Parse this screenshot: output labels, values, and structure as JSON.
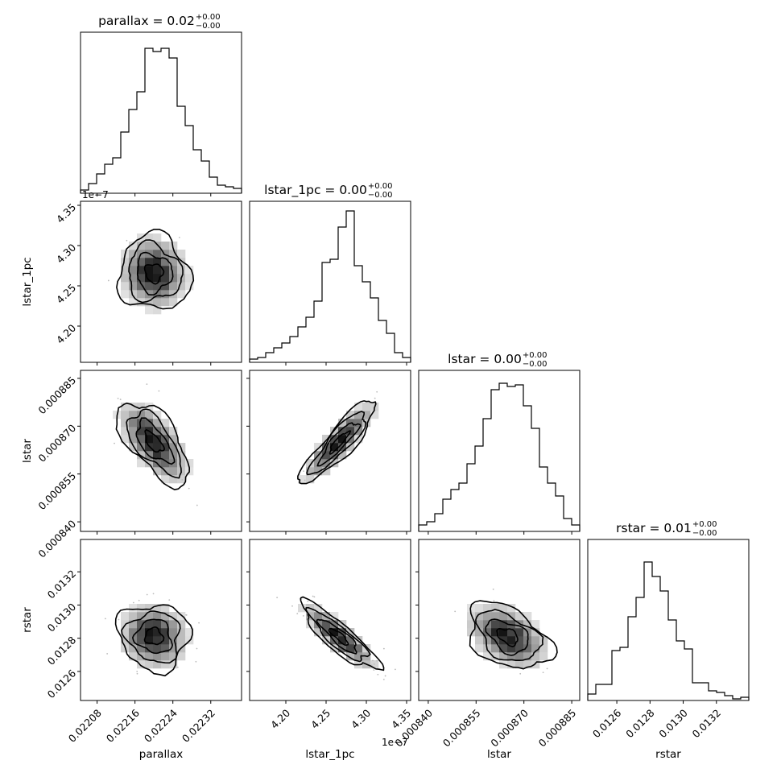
{
  "chart_data": {
    "type": "corner",
    "parameters": [
      "parallax",
      "lstar_1pc",
      "lstar",
      "rstar"
    ],
    "titles": [
      {
        "main": "parallax = 0.02",
        "sup": "+0.00",
        "sub": "−0.00"
      },
      {
        "main": "lstar_1pc = 0.00",
        "sup": "+0.00",
        "sub": "−0.00"
      },
      {
        "main": "lstar = 0.00",
        "sup": "+0.00",
        "sub": "−0.00"
      },
      {
        "main": "rstar = 0.01",
        "sup": "+0.00",
        "sub": "−0.00"
      }
    ],
    "axes": [
      {
        "name": "parallax",
        "label": "parallax",
        "range": [
          0.022045,
          0.022385
        ],
        "ticks": [
          0.02208,
          0.02216,
          0.02224,
          0.02232
        ],
        "tick_labels": [
          "0.02208",
          "0.02216",
          "0.02224",
          "0.02232"
        ],
        "offset_text": ""
      },
      {
        "name": "lstar_1pc",
        "label": "lstar_1pc",
        "range": [
          4.155,
          4.355
        ],
        "ticks": [
          4.2,
          4.25,
          4.3,
          4.35
        ],
        "tick_labels": [
          "4.20",
          "4.25",
          "4.30",
          "4.35"
        ],
        "offset_text": "1e−7"
      },
      {
        "name": "lstar",
        "label": "lstar",
        "range": [
          0.000837,
          0.0008875
        ],
        "ticks": [
          0.00084,
          0.000855,
          0.00087,
          0.000885
        ],
        "tick_labels": [
          "0.000840",
          "0.000855",
          "0.000870",
          "0.000885"
        ],
        "offset_text": ""
      },
      {
        "name": "rstar",
        "label": "rstar",
        "range": [
          0.012425,
          0.013395
        ],
        "ticks": [
          0.0126,
          0.0128,
          0.013,
          0.0132
        ],
        "tick_labels": [
          "0.0126",
          "0.0128",
          "0.0130",
          "0.0132"
        ],
        "offset_text": ""
      }
    ],
    "histograms": [
      [
        0.02,
        0.06,
        0.12,
        0.18,
        0.22,
        0.38,
        0.52,
        0.63,
        0.9,
        0.88,
        0.9,
        0.84,
        0.54,
        0.42,
        0.27,
        0.2,
        0.1,
        0.05,
        0.04,
        0.03
      ],
      [
        0.02,
        0.03,
        0.06,
        0.09,
        0.12,
        0.16,
        0.22,
        0.28,
        0.38,
        0.62,
        0.64,
        0.84,
        0.94,
        0.6,
        0.5,
        0.4,
        0.26,
        0.18,
        0.06,
        0.03
      ],
      [
        0.04,
        0.06,
        0.11,
        0.2,
        0.26,
        0.3,
        0.42,
        0.53,
        0.7,
        0.88,
        0.92,
        0.9,
        0.91,
        0.78,
        0.64,
        0.4,
        0.3,
        0.22,
        0.08,
        0.04
      ],
      [
        0.04,
        0.1,
        0.1,
        0.31,
        0.33,
        0.52,
        0.64,
        0.86,
        0.77,
        0.68,
        0.5,
        0.37,
        0.32,
        0.11,
        0.11,
        0.06,
        0.05,
        0.03,
        0.01,
        0.02
      ]
    ],
    "pairs": [
      {
        "x": "parallax",
        "y": "lstar_1pc",
        "center": [
          0.0222,
          4.266
        ],
        "sigma": [
          3.75e-05,
          0.0235
        ],
        "rho": -0.05
      },
      {
        "x": "parallax",
        "y": "lstar",
        "center": [
          0.0222,
          0.000865
        ],
        "sigma": [
          3.75e-05,
          6.5e-06
        ],
        "rho": -0.62
      },
      {
        "x": "lstar_1pc",
        "y": "lstar",
        "center": [
          4.266,
          0.000865
        ],
        "sigma": [
          0.0235,
          6.5e-06
        ],
        "rho": 0.88
      },
      {
        "x": "parallax",
        "y": "rstar",
        "center": [
          0.0222,
          0.01281
        ],
        "sigma": [
          3.75e-05,
          0.0001
        ],
        "rho": -0.08
      },
      {
        "x": "lstar_1pc",
        "y": "rstar",
        "center": [
          4.266,
          0.01281
        ],
        "sigma": [
          0.0235,
          0.0001
        ],
        "rho": -0.86
      },
      {
        "x": "lstar",
        "y": "rstar",
        "center": [
          0.000865,
          0.01281
        ],
        "sigma": [
          6.5e-06,
          0.0001
        ],
        "rho": -0.4
      }
    ],
    "contour_levels_sigma": [
      0.5,
      1.0,
      1.5,
      2.0
    ],
    "bins": 20,
    "grid": false
  }
}
